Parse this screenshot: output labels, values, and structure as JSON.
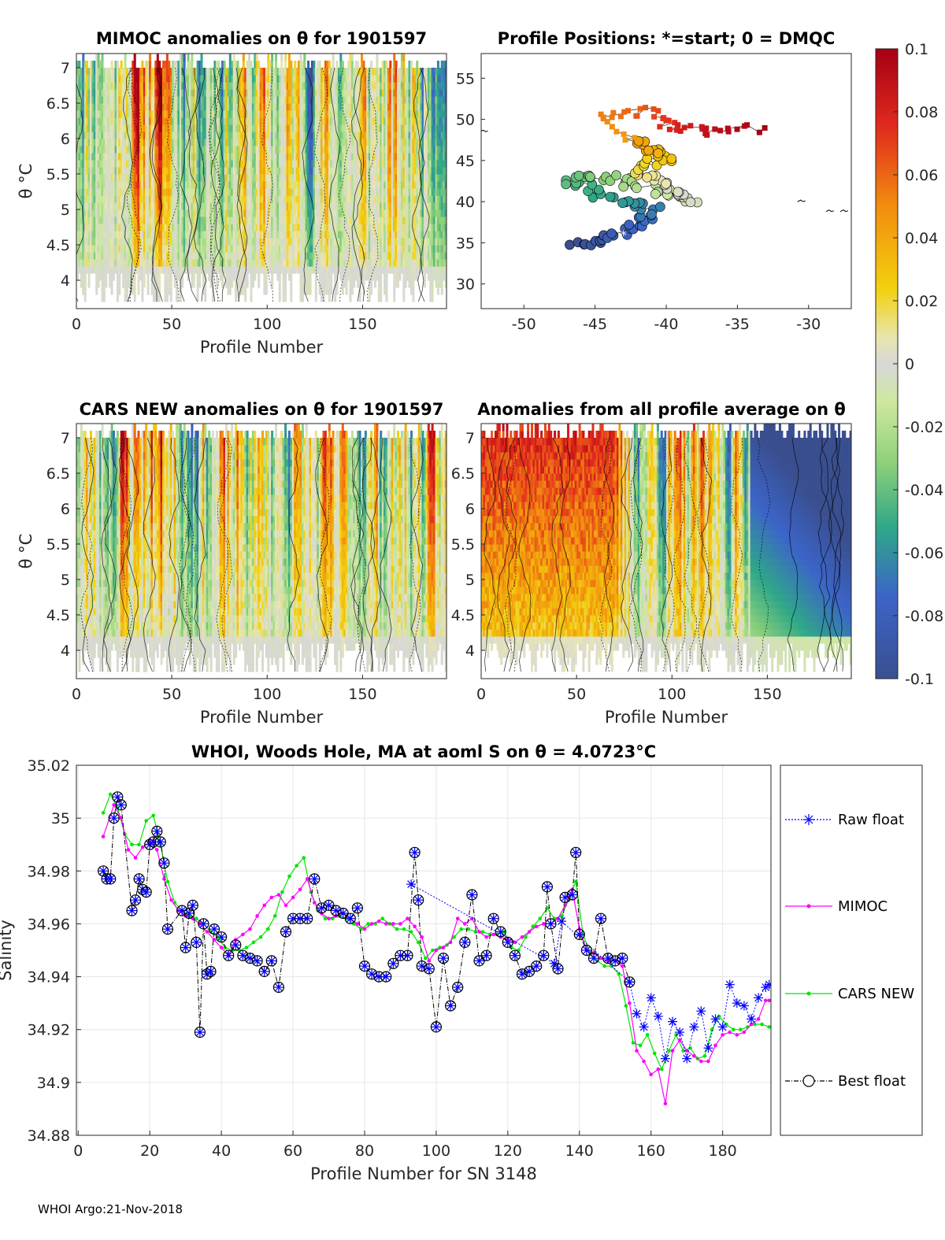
{
  "chart_data": [
    {
      "id": "mimoc",
      "type": "heatmap",
      "title": "MIMOC anomalies on θ  for 1901597",
      "xlabel": "Profile Number",
      "ylabel": "θ °C",
      "xlim": [
        0,
        194
      ],
      "ylim": [
        3.6,
        7.2
      ],
      "xticks": [
        "0",
        "50",
        "100",
        "150"
      ],
      "yticks": [
        "4",
        "4.5",
        "5",
        "5.5",
        "6",
        "6.5",
        "7"
      ]
    },
    {
      "id": "positions",
      "type": "scatter",
      "title": "Profile Positions: *=start; 0 = DMQC",
      "xlim": [
        -53,
        -27
      ],
      "ylim": [
        27,
        58
      ],
      "xticks": [
        "-50",
        "-45",
        "-40",
        "-35",
        "-30"
      ],
      "yticks": [
        "30",
        "35",
        "40",
        "45",
        "50",
        "55"
      ]
    },
    {
      "id": "cars",
      "type": "heatmap",
      "title": "CARS NEW anomalies on θ for 1901597",
      "xlabel": "Profile Number",
      "ylabel": "θ °C",
      "xlim": [
        0,
        194
      ],
      "ylim": [
        3.6,
        7.2
      ],
      "xticks": [
        "0",
        "50",
        "100",
        "150"
      ],
      "yticks": [
        "4",
        "4.5",
        "5",
        "5.5",
        "6",
        "6.5",
        "7"
      ]
    },
    {
      "id": "avg",
      "type": "heatmap",
      "title": "Anomalies from all profile average on θ",
      "xlabel": "Profile Number",
      "xlim": [
        0,
        194
      ],
      "ylim": [
        3.6,
        7.2
      ],
      "xticks": [
        "0",
        "50",
        "100",
        "150"
      ],
      "yticks": [
        "4",
        "4.5",
        "5",
        "5.5",
        "6",
        "6.5",
        "7"
      ]
    },
    {
      "id": "colorbar",
      "type": "heatmap",
      "range": [
        -0.1,
        0.1
      ],
      "ticks": [
        "0.1",
        "0.08",
        "0.06",
        "0.04",
        "0.02",
        "0",
        "-0.02",
        "-0.04",
        "-0.06",
        "-0.08",
        "-0.1"
      ]
    },
    {
      "id": "salinity",
      "type": "line",
      "title": "WHOI, Woods Hole, MA at aoml S on θ = 4.0723°C",
      "xlabel": "Profile Number for SN 3148",
      "ylabel": "Salinity",
      "xlim": [
        -0.5,
        193.5
      ],
      "ylim": [
        34.88,
        35.02
      ],
      "grid": true,
      "xticks": [
        "0",
        "20",
        "40",
        "60",
        "80",
        "100",
        "120",
        "140",
        "160",
        "180"
      ],
      "yticks": [
        "34.88",
        "34.9",
        "34.92",
        "34.94",
        "34.96",
        "34.98",
        "35",
        "35.02"
      ],
      "legend": [
        "Raw float",
        "MIMOC",
        "CARS NEW",
        "Best float"
      ],
      "series": [
        {
          "name": "Best float",
          "color": "#000000",
          "x": [
            7,
            8,
            9,
            10,
            11,
            12,
            15,
            16,
            17,
            18,
            19,
            20,
            21,
            22,
            23,
            24,
            25,
            29,
            30,
            31,
            32,
            33,
            34,
            35,
            36,
            37,
            38,
            40,
            42,
            44,
            46,
            48,
            50,
            52,
            54,
            56,
            58,
            60,
            62,
            64,
            66,
            68,
            70,
            72,
            74,
            76,
            78,
            80,
            82,
            84,
            86,
            88,
            90,
            92,
            94,
            95,
            96,
            98,
            100,
            102,
            104,
            106,
            108,
            110,
            112,
            114,
            116,
            118,
            120,
            122,
            124,
            126,
            128,
            130,
            131,
            132,
            134,
            136,
            138,
            139,
            140,
            142,
            144,
            146,
            148,
            150,
            152,
            154
          ],
          "y": [
            34.98,
            34.977,
            34.977,
            35,
            35.008,
            35.005,
            34.965,
            34.969,
            34.977,
            34.973,
            34.972,
            34.99,
            34.991,
            34.995,
            34.991,
            34.983,
            34.958,
            34.965,
            34.951,
            34.964,
            34.967,
            34.953,
            34.919,
            34.96,
            34.941,
            34.942,
            34.958,
            34.955,
            34.948,
            34.952,
            34.948,
            34.947,
            34.946,
            34.942,
            34.946,
            34.936,
            34.957,
            34.962,
            34.962,
            34.962,
            34.977,
            34.966,
            34.967,
            34.965,
            34.964,
            34.962,
            34.966,
            34.944,
            34.941,
            34.94,
            34.94,
            34.945,
            34.948,
            34.948,
            34.987,
            34.969,
            34.944,
            34.943,
            34.921,
            34.947,
            34.929,
            34.936,
            34.953,
            34.971,
            34.946,
            34.948,
            34.962,
            34.957,
            34.953,
            34.948,
            34.941,
            34.942,
            34.944,
            34.948,
            34.974,
            34.96,
            34.943,
            34.97,
            34.971,
            34.987,
            34.956,
            34.95,
            34.947,
            34.962,
            34.947,
            34.946,
            34.947,
            34.938
          ]
        },
        {
          "name": "Raw float",
          "color": "#0000ff",
          "x": [
            93,
            133,
            135,
            154,
            156,
            158,
            160,
            162,
            164,
            166,
            168,
            170,
            172,
            174,
            176,
            178,
            180,
            182,
            184,
            186,
            188,
            190,
            192,
            193
          ],
          "y": [
            34.975,
            34.945,
            34.961,
            34.938,
            34.926,
            34.921,
            34.932,
            34.925,
            34.909,
            34.923,
            34.919,
            34.909,
            34.921,
            34.927,
            34.913,
            34.924,
            34.921,
            34.937,
            34.93,
            34.929,
            34.924,
            34.932,
            34.936,
            34.937
          ]
        },
        {
          "name": "MIMOC",
          "color": "#ff00ff",
          "x": [
            7,
            10,
            12,
            14,
            16,
            18,
            20,
            22,
            24,
            26,
            28,
            30,
            32,
            34,
            36,
            38,
            40,
            42,
            44,
            46,
            48,
            50,
            52,
            54,
            56,
            58,
            60,
            62,
            64,
            66,
            68,
            70,
            72,
            74,
            76,
            78,
            80,
            82,
            84,
            86,
            88,
            90,
            92,
            94,
            96,
            98,
            100,
            102,
            104,
            106,
            108,
            110,
            112,
            114,
            116,
            118,
            120,
            122,
            124,
            126,
            128,
            130,
            132,
            134,
            136,
            138,
            140,
            142,
            144,
            146,
            148,
            150,
            152,
            154,
            156,
            158,
            160,
            162,
            164,
            166,
            168,
            170,
            172,
            174,
            176,
            178,
            180,
            182,
            184,
            186,
            188,
            190,
            192,
            193
          ],
          "y": [
            34.993,
            35.005,
            35.0,
            34.988,
            34.985,
            34.989,
            34.991,
            34.988,
            34.977,
            34.969,
            34.965,
            34.963,
            34.962,
            34.96,
            34.957,
            34.954,
            34.951,
            34.948,
            34.954,
            34.956,
            34.958,
            34.963,
            34.967,
            34.97,
            34.971,
            34.967,
            34.97,
            34.973,
            34.977,
            34.968,
            34.964,
            34.962,
            34.963,
            34.964,
            34.962,
            34.96,
            34.958,
            34.96,
            34.961,
            34.96,
            34.96,
            34.96,
            34.962,
            34.959,
            34.955,
            34.946,
            34.95,
            34.951,
            34.953,
            34.962,
            34.96,
            34.962,
            34.957,
            34.955,
            34.956,
            34.955,
            34.954,
            34.953,
            34.955,
            34.957,
            34.959,
            34.96,
            34.96,
            34.962,
            34.967,
            34.973,
            34.958,
            34.95,
            34.949,
            34.947,
            34.946,
            34.946,
            34.944,
            34.93,
            34.912,
            34.908,
            34.903,
            34.905,
            34.892,
            34.912,
            34.916,
            34.912,
            34.91,
            34.908,
            34.908,
            34.914,
            34.918,
            34.919,
            34.918,
            34.919,
            34.922,
            34.924,
            34.931,
            34.931
          ]
        },
        {
          "name": "CARS NEW",
          "color": "#00e600",
          "x": [
            7,
            9,
            11,
            13,
            15,
            17,
            19,
            21,
            23,
            25,
            27,
            29,
            31,
            33,
            35,
            37,
            39,
            41,
            43,
            45,
            47,
            49,
            51,
            53,
            55,
            57,
            59,
            61,
            63,
            65,
            67,
            69,
            71,
            73,
            75,
            77,
            79,
            81,
            83,
            85,
            87,
            89,
            91,
            93,
            95,
            97,
            99,
            101,
            103,
            105,
            107,
            109,
            111,
            113,
            115,
            117,
            119,
            121,
            123,
            125,
            127,
            129,
            131,
            133,
            135,
            137,
            139,
            141,
            143,
            145,
            147,
            149,
            151,
            153,
            155,
            157,
            159,
            161,
            163,
            165,
            167,
            169,
            171,
            173,
            175,
            177,
            179,
            181,
            183,
            185,
            187,
            189,
            191,
            193
          ],
          "y": [
            35.002,
            35.009,
            35.004,
            34.994,
            34.99,
            34.99,
            34.999,
            35.001,
            34.99,
            34.976,
            34.968,
            34.965,
            34.963,
            34.962,
            34.96,
            34.957,
            34.955,
            34.951,
            34.95,
            34.95,
            34.951,
            34.953,
            34.955,
            34.958,
            34.963,
            34.972,
            34.978,
            34.982,
            34.985,
            34.972,
            34.965,
            34.962,
            34.962,
            34.963,
            34.962,
            34.96,
            34.958,
            34.96,
            34.96,
            34.962,
            34.96,
            34.958,
            34.958,
            34.957,
            34.953,
            34.947,
            34.95,
            34.951,
            34.952,
            34.955,
            34.958,
            34.958,
            34.957,
            34.957,
            34.956,
            34.956,
            34.957,
            34.951,
            34.95,
            34.955,
            34.959,
            34.962,
            34.966,
            34.962,
            34.963,
            34.969,
            34.976,
            34.956,
            34.949,
            34.946,
            34.944,
            34.944,
            34.941,
            34.929,
            34.915,
            34.914,
            34.918,
            34.911,
            34.905,
            34.912,
            34.918,
            34.912,
            34.913,
            34.909,
            34.91,
            34.92,
            34.925,
            34.922,
            34.92,
            34.92,
            34.921,
            34.922,
            34.922,
            34.921
          ]
        }
      ]
    }
  ],
  "footer": "WHOI Argo:21-Nov-2018",
  "colors": {
    "grid": "#e6e6e6",
    "axis": "#262626"
  }
}
